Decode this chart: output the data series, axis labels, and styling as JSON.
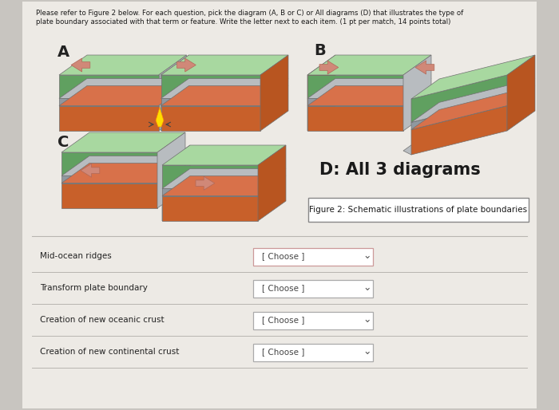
{
  "bg_color": "#c8c5c0",
  "panel_color": "#edeae5",
  "title_text1": "Please refer to Figure 2 below. For each question, pick the diagram (A, B or C) or All diagrams (D) that illustrates the type of",
  "title_text2": "plate boundary associated with that term or feature. Write the letter next to each item. (1 pt per match, 14 points total)",
  "label_A": "A",
  "label_B": "B",
  "label_C": "C",
  "label_D": "D: All 3 diagrams",
  "fig2_caption": "Figure 2: Schematic illustrations of plate boundaries",
  "rows": [
    {
      "label": "Mid-ocean ridges",
      "dropdown": "[ Choose ]"
    },
    {
      "label": "Transform plate boundary",
      "dropdown": "[ Choose ]"
    },
    {
      "label": "Creation of new oceanic crust",
      "dropdown": "[ Choose ]"
    },
    {
      "label": "Creation of new continental crust",
      "dropdown": "[ Choose ]"
    }
  ],
  "green_light": "#a8d8a0",
  "green_dark": "#70b870",
  "green_side": "#60a060",
  "gray_top": "#b8bcc0",
  "gray_side": "#9098a0",
  "orange_top": "#d8714a",
  "orange_front": "#c8602a",
  "orange_side": "#b85520",
  "arrow_fill": "#d08878",
  "arrow_edge": "#b06858",
  "divider_color": "#b8b5b0",
  "flame_yellow": "#ffdd00",
  "flame_orange": "#ff8800"
}
